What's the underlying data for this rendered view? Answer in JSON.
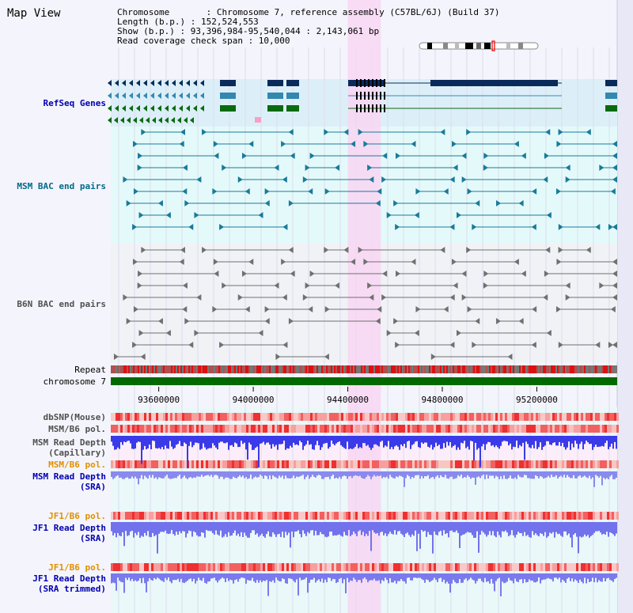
{
  "page": {
    "title": "Map View",
    "header": [
      "Chromosome       : Chromosome 7, reference assembly (C57BL/6J) (Build 37)",
      "Length (b.p.) : 152,524,553",
      "Show (b.p.) : 93,396,984-95,540,044 : 2,143,061 bp",
      "Read coverage check span : 10,000"
    ]
  },
  "tracks": {
    "refseq": "RefSeq Genes",
    "msm_bac": "MSM BAC end pairs",
    "b6n_bac": "B6N BAC end pairs",
    "repeat": "Repeat",
    "chromosome": "chromosome 7",
    "dbsnp": "dbSNP(Mouse)",
    "msm_b6_pol_1": "MSM/B6 pol.",
    "msm_depth_cap": "MSM Read Depth\n(Capillary)",
    "msm_b6_pol_2": "MSM/B6 pol.",
    "msm_depth_sra": "MSM Read Depth\n(SRA)",
    "jf1_b6_pol_1": "JF1/B6 pol.",
    "jf1_depth_sra": "JF1 Read Depth\n(SRA)",
    "jf1_b6_pol_2": "JF1/B6 pol.",
    "jf1_depth_trim": "JF1 Read Depth\n(SRA trimmed)"
  },
  "axis": {
    "ticks": [
      "93600000",
      "94000000",
      "94400000",
      "94800000",
      "95200000"
    ],
    "tick_values": [
      93600000,
      94000000,
      94400000,
      94800000,
      95200000
    ],
    "range": [
      93396984,
      95540044
    ],
    "highlight": [
      94400000,
      94540000
    ]
  },
  "colors": {
    "refseq_bg": "#dceff8",
    "msm_bg": "#e4fafa",
    "b6n_bg": "#f0f2f6",
    "lower_bg": "#eaf8fa",
    "highlight": "#f8d6f2",
    "chrom_green": "#006a00",
    "label_blue": "#0000b0",
    "label_teal": "#006a8a",
    "label_gray": "#505050",
    "label_orange": "#e09000"
  }
}
